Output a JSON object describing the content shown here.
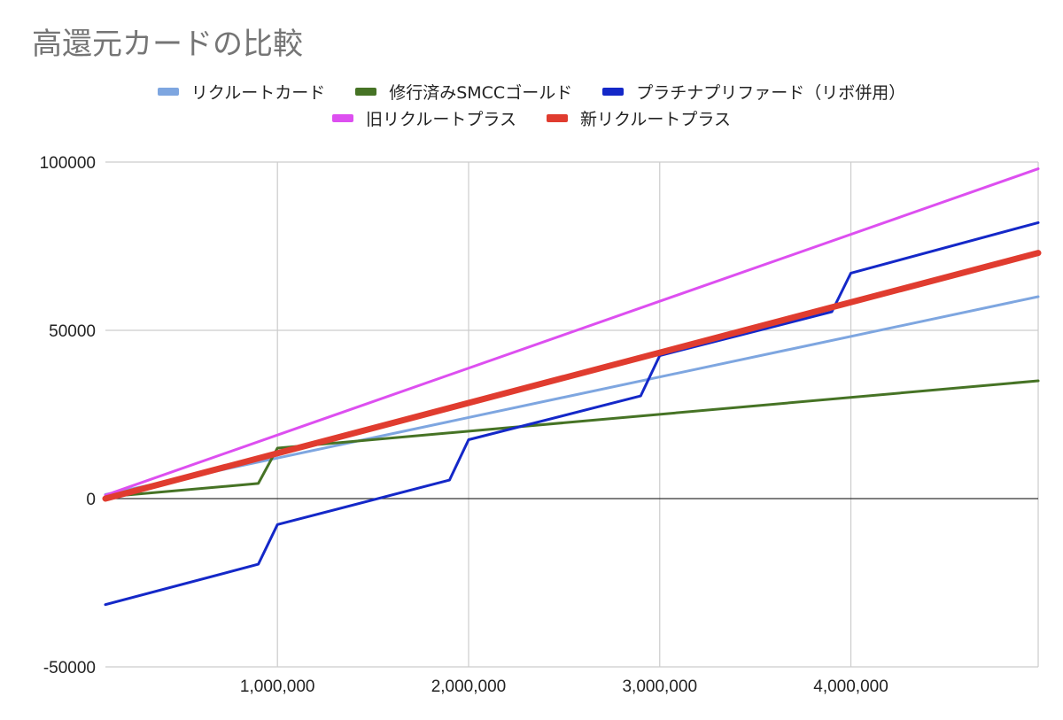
{
  "chart_data": {
    "type": "line",
    "title": "高還元カードの比較",
    "xlabel": "",
    "ylabel": "",
    "xlim": [
      100000,
      4980000
    ],
    "ylim": [
      -50000,
      100000
    ],
    "x_ticks": [
      1000000,
      2000000,
      3000000,
      4000000
    ],
    "x_tick_labels": [
      "1,000,000",
      "2,000,000",
      "3,000,000",
      "4,000,000"
    ],
    "y_ticks": [
      -50000,
      0,
      50000,
      100000
    ],
    "y_tick_labels": [
      "-50000",
      "0",
      "50000",
      "100000"
    ],
    "grid": true,
    "legend_position": "top",
    "series": [
      {
        "name": "リクルートカード",
        "color": "#7ea6e0",
        "width": 3,
        "points": [
          [
            100000,
            1200
          ],
          [
            4980000,
            60000
          ]
        ]
      },
      {
        "name": "修行済みSMCCゴールド",
        "color": "#467325",
        "width": 3,
        "points": [
          [
            100000,
            500
          ],
          [
            900000,
            4500
          ],
          [
            1000000,
            15000
          ],
          [
            4980000,
            35000
          ]
        ]
      },
      {
        "name": "プラチナプリファード（リボ併用）",
        "color": "#1428c8",
        "width": 3,
        "points": [
          [
            100000,
            -31500
          ],
          [
            900000,
            -19500
          ],
          [
            1000000,
            -7700
          ],
          [
            1900000,
            5500
          ],
          [
            2000000,
            17500
          ],
          [
            2900000,
            30500
          ],
          [
            3000000,
            42500
          ],
          [
            3900000,
            55500
          ],
          [
            4000000,
            67000
          ],
          [
            4980000,
            82000
          ]
        ]
      },
      {
        "name": "旧リクルートプラス",
        "color": "#dd4ff0",
        "width": 3,
        "points": [
          [
            100000,
            1000
          ],
          [
            4980000,
            98000
          ]
        ]
      },
      {
        "name": "新リクルートプラス",
        "color": "#e03c2f",
        "width": 7,
        "points": [
          [
            100000,
            0
          ],
          [
            4980000,
            73000
          ]
        ]
      }
    ]
  }
}
